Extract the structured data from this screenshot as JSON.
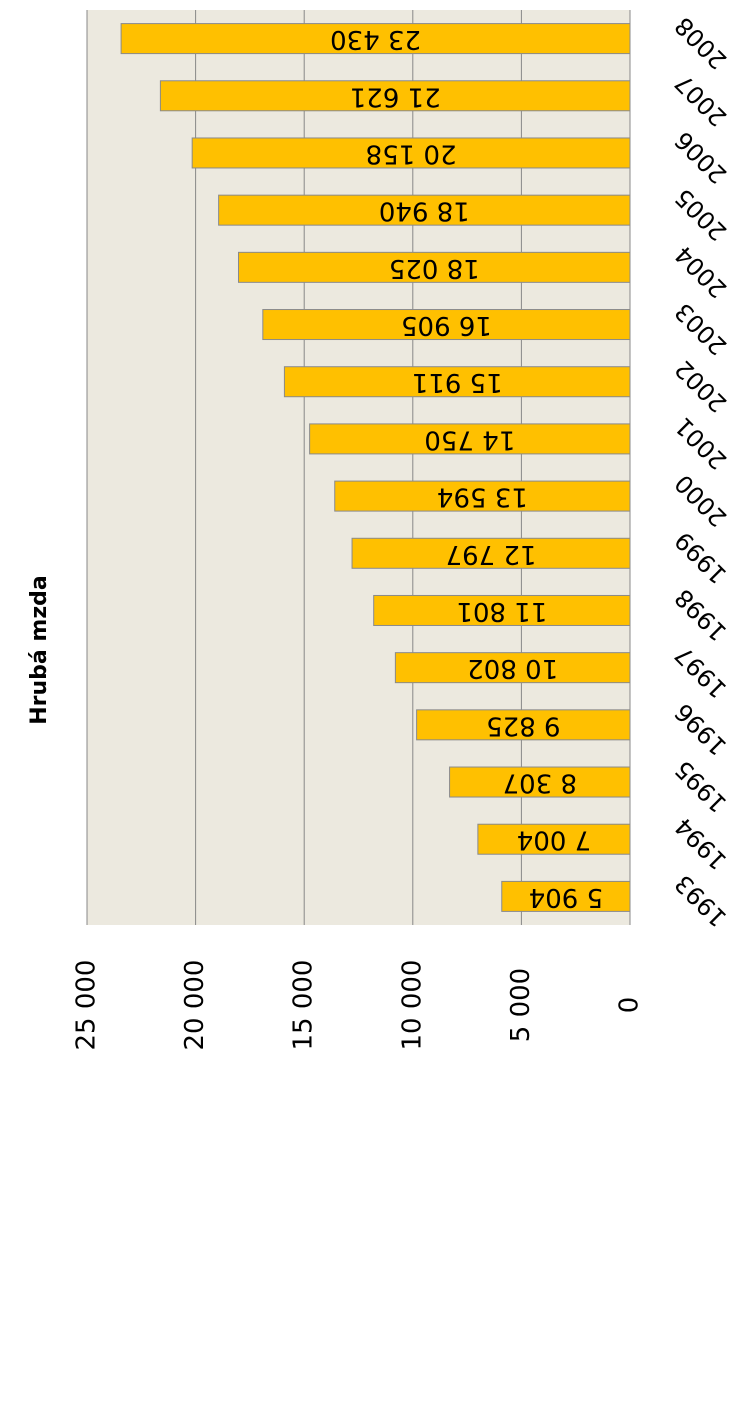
{
  "chart_data": {
    "type": "bar",
    "title": "Hrubá mzda",
    "categories": [
      "1993",
      "1994",
      "1995",
      "1996",
      "1997",
      "1998",
      "1999",
      "2000",
      "2001",
      "2002",
      "2003",
      "2004",
      "2005",
      "2006",
      "2007",
      "2008"
    ],
    "values": [
      5904,
      7004,
      8307,
      9825,
      10802,
      11801,
      12797,
      13594,
      14750,
      15911,
      16905,
      18025,
      18940,
      20158,
      21621,
      23430
    ],
    "value_labels": [
      "5 904",
      "7 004",
      "8 307",
      "9 825",
      "10 802",
      "11 801",
      "12 797",
      "13 594",
      "14 750",
      "15 911",
      "16 905",
      "18 025",
      "18 940",
      "20 158",
      "21 621",
      "23 430"
    ],
    "color": "#ffc000",
    "ylim": [
      0,
      25000
    ],
    "yticks": [
      0,
      {
        "value": 5000,
        "label": "5 000"
      },
      {
        "value": 10000,
        "label": "10 000"
      },
      {
        "value": 15000,
        "label": "15 000"
      },
      {
        "value": 20000,
        "label": "20 000"
      },
      {
        "value": 25000,
        "label": "25 000"
      }
    ],
    "grid": true
  }
}
